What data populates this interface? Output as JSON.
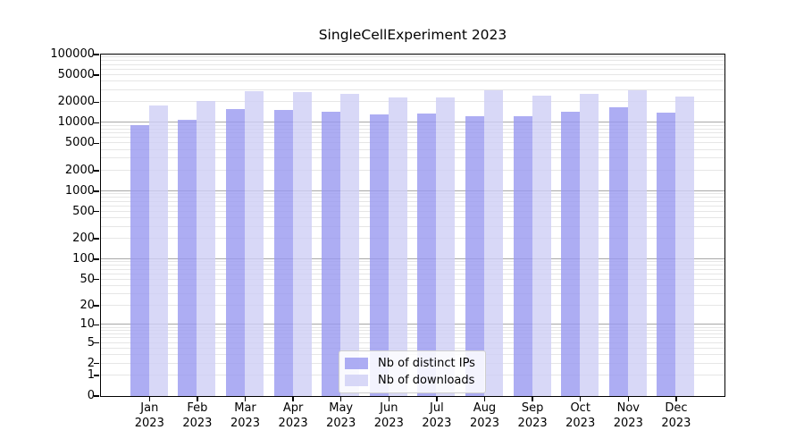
{
  "chart_data": {
    "type": "bar",
    "title": "SingleCellExperiment 2023",
    "categories": [
      "Jan 2023",
      "Feb 2023",
      "Mar 2023",
      "Apr 2023",
      "May 2023",
      "Jun 2023",
      "Jul 2023",
      "Aug 2023",
      "Sep 2023",
      "Oct 2023",
      "Nov 2023",
      "Dec 2023"
    ],
    "series": [
      {
        "name": "Nb of distinct IPs",
        "color": "#9898f0",
        "values": [
          9200,
          11000,
          15900,
          15400,
          14300,
          12900,
          13500,
          12500,
          12200,
          14200,
          16600,
          13800
        ]
      },
      {
        "name": "Nb of downloads",
        "color": "#cecef5",
        "values": [
          17600,
          20400,
          29000,
          27400,
          26300,
          22900,
          22900,
          29900,
          24800,
          25800,
          29900,
          23700
        ]
      }
    ],
    "y_ticks": [
      0,
      1,
      2,
      5,
      10,
      20,
      50,
      100,
      200,
      500,
      1000,
      2000,
      5000,
      10000,
      20000,
      50000,
      100000
    ],
    "y_scale": "log10(value+1)",
    "ylim": [
      0,
      100000
    ],
    "xlabel": "",
    "ylabel": "",
    "grid": true,
    "legend_position": "lower center"
  },
  "colors": {
    "bar_distinct_ips": "#9898f0",
    "bar_downloads": "#cecef5",
    "grid_major": "#a8a8a8",
    "grid_minor": "#e6e6e6",
    "spine": "#000000",
    "background": "#ffffff"
  }
}
